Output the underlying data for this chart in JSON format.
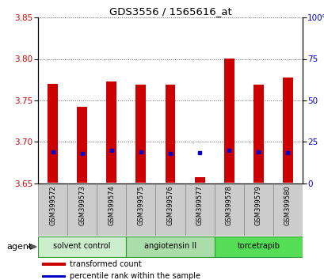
{
  "title": "GDS3556 / 1565616_at",
  "samples": [
    "GSM399572",
    "GSM399573",
    "GSM399574",
    "GSM399575",
    "GSM399576",
    "GSM399577",
    "GSM399578",
    "GSM399579",
    "GSM399580"
  ],
  "bar_bottoms": [
    3.651,
    3.651,
    3.651,
    3.651,
    3.651,
    3.651,
    3.651,
    3.651,
    3.651
  ],
  "bar_tops": [
    3.77,
    3.742,
    3.773,
    3.769,
    3.769,
    3.658,
    3.8,
    3.769,
    3.778
  ],
  "blue_dot_y": [
    3.688,
    3.686,
    3.69,
    3.688,
    3.686,
    3.687,
    3.69,
    3.688,
    3.687
  ],
  "bar_color": "#cc0000",
  "dot_color": "#0000cc",
  "ylim": [
    3.65,
    3.85
  ],
  "yticks_left": [
    3.65,
    3.7,
    3.75,
    3.8,
    3.85
  ],
  "yticks_right": [
    0,
    25,
    50,
    75,
    100
  ],
  "ylabel_left_color": "#cc0000",
  "ylabel_right_color": "#0000cc",
  "groups": [
    {
      "label": "solvent control",
      "samples": [
        0,
        1,
        2
      ],
      "color": "#cceecc"
    },
    {
      "label": "angiotensin II",
      "samples": [
        3,
        4,
        5
      ],
      "color": "#aaddaa"
    },
    {
      "label": "torcetrapib",
      "samples": [
        6,
        7,
        8
      ],
      "color": "#55dd55"
    }
  ],
  "agent_label": "agent",
  "legend_items": [
    {
      "label": "transformed count",
      "color": "#cc0000"
    },
    {
      "label": "percentile rank within the sample",
      "color": "#0000cc"
    }
  ],
  "bar_width": 0.35,
  "tick_area_color": "#cccccc",
  "background_plot": "#ffffff"
}
